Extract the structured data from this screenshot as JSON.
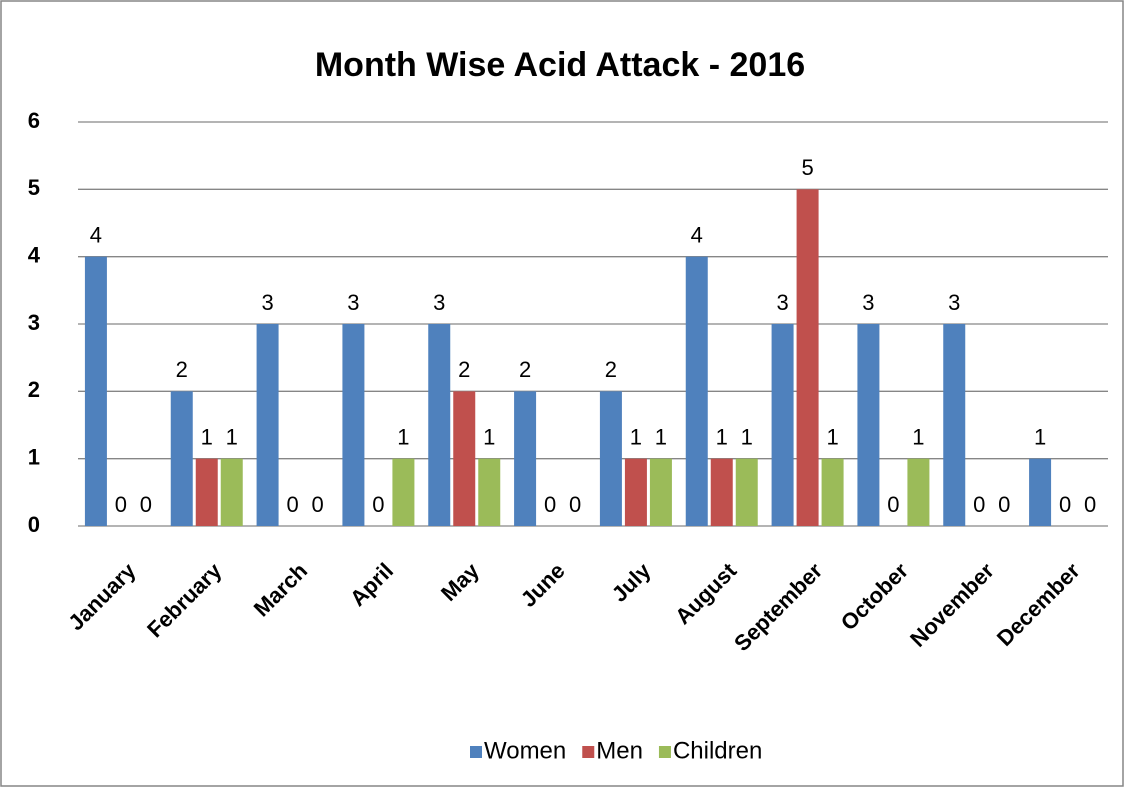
{
  "chart_data": {
    "type": "bar",
    "title": "Month Wise Acid Attack  - 2016",
    "categories": [
      "January",
      "February",
      "March",
      "April",
      "May",
      "June",
      "July",
      "August",
      "September",
      "October",
      "November",
      "December"
    ],
    "series": [
      {
        "name": "Women",
        "color": "#4f81bd",
        "values": [
          4,
          2,
          3,
          3,
          3,
          2,
          2,
          4,
          3,
          3,
          3,
          1
        ]
      },
      {
        "name": "Men",
        "color": "#c0504d",
        "values": [
          0,
          1,
          0,
          0,
          2,
          0,
          1,
          1,
          5,
          0,
          0,
          0
        ]
      },
      {
        "name": "Children",
        "color": "#9bbb59",
        "values": [
          0,
          1,
          0,
          1,
          1,
          0,
          1,
          1,
          1,
          1,
          0,
          0
        ]
      }
    ],
    "ylim": [
      0,
      6
    ],
    "yticks": [
      0,
      1,
      2,
      3,
      4,
      5,
      6
    ],
    "grid": true,
    "legend": "bottom",
    "data_labels": true
  }
}
